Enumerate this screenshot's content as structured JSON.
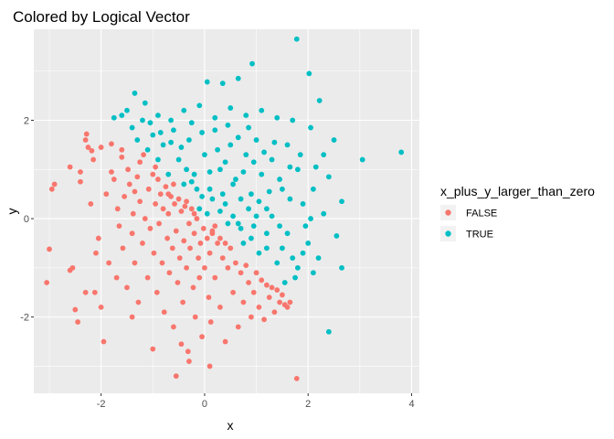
{
  "chart_data": {
    "type": "scatter",
    "title": "Colored by Logical Vector",
    "xlabel": "x",
    "ylabel": "y",
    "xlim": [
      -3.3,
      4.15
    ],
    "ylim": [
      -3.55,
      3.85
    ],
    "x_ticks": [
      -2,
      0,
      2,
      4
    ],
    "y_ticks": [
      -2,
      0,
      2
    ],
    "x_tick_labels": [
      "-2",
      "0",
      "2",
      "4"
    ],
    "y_tick_labels": [
      "-2",
      "0",
      "2"
    ],
    "grid": true,
    "legend_position": "right",
    "legend_title": "x_plus_y_larger_than_zero",
    "series": [
      {
        "name": "FALSE",
        "color": "#F8766D",
        "points": [
          [
            -3.0,
            -0.62
          ],
          [
            -3.05,
            -1.3
          ],
          [
            -2.95,
            0.6
          ],
          [
            -2.9,
            0.7
          ],
          [
            -2.6,
            1.05
          ],
          [
            -2.55,
            -1.0
          ],
          [
            -2.5,
            -1.85
          ],
          [
            -2.45,
            -2.1
          ],
          [
            -2.4,
            0.95
          ],
          [
            -2.4,
            0.75
          ],
          [
            -2.3,
            1.6
          ],
          [
            -2.28,
            1.72
          ],
          [
            -2.25,
            1.45
          ],
          [
            -2.2,
            0.3
          ],
          [
            -2.18,
            1.38
          ],
          [
            -2.15,
            1.2
          ],
          [
            -2.12,
            -1.5
          ],
          [
            -2.1,
            -0.7
          ],
          [
            -2.05,
            -0.4
          ],
          [
            -2.0,
            1.45
          ],
          [
            -2.0,
            -1.8
          ],
          [
            -1.95,
            -2.5
          ],
          [
            -1.9,
            0.5
          ],
          [
            -1.85,
            -0.9
          ],
          [
            -1.8,
            1.52
          ],
          [
            -1.75,
            0.8
          ],
          [
            -1.7,
            -1.2
          ],
          [
            -1.68,
            0.2
          ],
          [
            -1.65,
            -0.15
          ],
          [
            -1.6,
            1.4
          ],
          [
            -1.58,
            -0.6
          ],
          [
            -1.55,
            0.45
          ],
          [
            -1.5,
            -1.4
          ],
          [
            -1.48,
            1.0
          ],
          [
            -1.45,
            0.7
          ],
          [
            -1.4,
            -0.3
          ],
          [
            -1.38,
            0.1
          ],
          [
            -1.35,
            -0.9
          ],
          [
            -1.3,
            0.85
          ],
          [
            -1.28,
            -1.7
          ],
          [
            -1.25,
            0.35
          ],
          [
            -1.2,
            -0.5
          ],
          [
            -1.18,
            1.3
          ],
          [
            -1.15,
            0.0
          ],
          [
            -1.1,
            -1.2
          ],
          [
            -1.08,
            0.6
          ],
          [
            -1.05,
            -0.2
          ],
          [
            -1.0,
            -2.65
          ],
          [
            -1.0,
            0.9
          ],
          [
            -0.98,
            -0.7
          ],
          [
            -0.95,
            0.3
          ],
          [
            -0.92,
            -1.5
          ],
          [
            -0.9,
            0.8
          ],
          [
            -0.88,
            -0.1
          ],
          [
            -0.85,
            0.5
          ],
          [
            -0.82,
            -0.9
          ],
          [
            -0.8,
            0.2
          ],
          [
            -0.78,
            -1.9
          ],
          [
            -0.75,
            0.65
          ],
          [
            -0.72,
            -0.4
          ],
          [
            -0.7,
            0.1
          ],
          [
            -0.68,
            -1.1
          ],
          [
            -0.65,
            0.45
          ],
          [
            -0.62,
            -0.6
          ],
          [
            -0.6,
            -2.2
          ],
          [
            -0.58,
            0.3
          ],
          [
            -0.55,
            -0.25
          ],
          [
            -0.52,
            -1.3
          ],
          [
            -0.5,
            0.4
          ],
          [
            -0.48,
            -0.8
          ],
          [
            -0.45,
            0.15
          ],
          [
            -0.42,
            -1.7
          ],
          [
            -0.4,
            -0.45
          ],
          [
            -0.38,
            0.25
          ],
          [
            -0.35,
            -1.0
          ],
          [
            -0.32,
            -2.7
          ],
          [
            -0.3,
            -0.1
          ],
          [
            -0.28,
            -0.6
          ],
          [
            -0.25,
            0.2
          ],
          [
            -0.22,
            -1.4
          ],
          [
            -0.2,
            -0.3
          ],
          [
            -0.18,
            -2.0
          ],
          [
            -0.15,
            0.0
          ],
          [
            -0.12,
            -0.8
          ],
          [
            -0.1,
            -1.2
          ],
          [
            -0.08,
            -0.5
          ],
          [
            -0.05,
            -2.4
          ],
          [
            -0.02,
            -0.2
          ],
          [
            0.0,
            -1.0
          ],
          [
            0.05,
            -0.4
          ],
          [
            0.08,
            -1.6
          ],
          [
            0.1,
            -0.7
          ],
          [
            0.12,
            -2.1
          ],
          [
            0.15,
            -0.3
          ],
          [
            0.2,
            -1.2
          ],
          [
            0.25,
            -0.5
          ],
          [
            0.3,
            -1.8
          ],
          [
            0.35,
            -0.8
          ],
          [
            0.4,
            -2.5
          ],
          [
            0.45,
            -1.0
          ],
          [
            0.5,
            -0.6
          ],
          [
            0.55,
            -1.5
          ],
          [
            0.6,
            -0.9
          ],
          [
            0.65,
            -2.2
          ],
          [
            0.7,
            -1.1
          ],
          [
            0.75,
            -1.7
          ],
          [
            0.8,
            -0.95
          ],
          [
            0.85,
            -1.3
          ],
          [
            0.9,
            -2.0
          ],
          [
            0.95,
            -1.5
          ],
          [
            1.0,
            -1.1
          ],
          [
            1.05,
            -1.8
          ],
          [
            1.1,
            -1.25
          ],
          [
            1.15,
            -2.05
          ],
          [
            1.2,
            -1.35
          ],
          [
            1.25,
            -1.6
          ],
          [
            1.3,
            -1.4
          ],
          [
            1.35,
            -1.9
          ],
          [
            1.4,
            -1.45
          ],
          [
            1.45,
            -1.7
          ],
          [
            1.5,
            -1.55
          ],
          [
            1.55,
            -1.75
          ],
          [
            1.6,
            -1.8
          ],
          [
            1.65,
            -1.7
          ],
          [
            1.78,
            -3.25
          ],
          [
            -0.55,
            -3.2
          ],
          [
            0.1,
            -3.0
          ],
          [
            -0.3,
            -2.9
          ],
          [
            -0.45,
            -2.55
          ],
          [
            -1.4,
            -2.0
          ],
          [
            -2.3,
            -1.5
          ],
          [
            -2.6,
            -1.05
          ],
          [
            -1.8,
            0.95
          ],
          [
            -1.25,
            1.15
          ],
          [
            -0.95,
            1.05
          ],
          [
            -1.6,
            1.25
          ],
          [
            -1.35,
            0.55
          ],
          [
            -0.7,
            0.5
          ],
          [
            -0.6,
            0.7
          ],
          [
            -0.2,
            0.1
          ],
          [
            -0.35,
            0.35
          ],
          [
            0.15,
            -0.25
          ],
          [
            0.3,
            -0.4
          ],
          [
            0.4,
            -0.5
          ],
          [
            0.2,
            -0.15
          ]
        ]
      },
      {
        "name": "TRUE",
        "color": "#00BFC4",
        "points": [
          [
            1.78,
            3.65
          ],
          [
            0.92,
            3.15
          ],
          [
            2.02,
            2.95
          ],
          [
            0.35,
            2.75
          ],
          [
            0.05,
            2.78
          ],
          [
            0.65,
            2.85
          ],
          [
            2.22,
            2.4
          ],
          [
            -1.35,
            2.55
          ],
          [
            -1.5,
            2.2
          ],
          [
            -1.75,
            2.05
          ],
          [
            -1.15,
            2.35
          ],
          [
            -0.9,
            2.1
          ],
          [
            -0.65,
            2.0
          ],
          [
            -0.4,
            2.2
          ],
          [
            -0.1,
            2.3
          ],
          [
            0.2,
            2.05
          ],
          [
            0.5,
            2.25
          ],
          [
            0.8,
            2.1
          ],
          [
            1.1,
            2.2
          ],
          [
            1.4,
            2.05
          ],
          [
            1.7,
            2.0
          ],
          [
            2.05,
            1.85
          ],
          [
            3.05,
            1.2
          ],
          [
            3.8,
            1.35
          ],
          [
            2.5,
            1.6
          ],
          [
            2.3,
            1.3
          ],
          [
            2.65,
            0.35
          ],
          [
            2.4,
            0.85
          ],
          [
            2.1,
            0.6
          ],
          [
            1.9,
            0.3
          ],
          [
            1.8,
            1.0
          ],
          [
            1.6,
            1.5
          ],
          [
            1.5,
            0.6
          ],
          [
            1.3,
            1.2
          ],
          [
            1.2,
            0.2
          ],
          [
            1.1,
            0.9
          ],
          [
            1.0,
            1.6
          ],
          [
            0.9,
            0.5
          ],
          [
            0.8,
            1.3
          ],
          [
            0.7,
            -0.2
          ],
          [
            0.6,
            0.8
          ],
          [
            0.5,
            1.5
          ],
          [
            0.4,
            0.3
          ],
          [
            0.3,
            1.0
          ],
          [
            0.2,
            1.8
          ],
          [
            0.1,
            0.6
          ],
          [
            0.0,
            1.3
          ],
          [
            -0.1,
            0.2
          ],
          [
            -0.2,
            0.9
          ],
          [
            -0.3,
            1.6
          ],
          [
            -0.4,
            0.7
          ],
          [
            -0.5,
            1.2
          ],
          [
            -0.6,
            1.8
          ],
          [
            -0.7,
            0.9
          ],
          [
            -0.8,
            1.5
          ],
          [
            -0.9,
            1.2
          ],
          [
            -1.0,
            1.7
          ],
          [
            -1.1,
            1.4
          ],
          [
            -1.2,
            2.0
          ],
          [
            -1.3,
            1.6
          ],
          [
            -1.4,
            1.85
          ],
          [
            -1.6,
            2.1
          ],
          [
            1.2,
            -0.6
          ],
          [
            1.4,
            -0.9
          ],
          [
            1.6,
            -0.3
          ],
          [
            1.8,
            -1.0
          ],
          [
            2.0,
            -0.5
          ],
          [
            2.2,
            -0.8
          ],
          [
            1.55,
            -1.3
          ],
          [
            1.75,
            -1.2
          ],
          [
            2.1,
            -1.1
          ],
          [
            1.95,
            -0.15
          ],
          [
            2.3,
            0.1
          ],
          [
            2.55,
            -0.35
          ],
          [
            2.65,
            -1.0
          ],
          [
            2.4,
            -2.3
          ],
          [
            0.9,
            -0.4
          ],
          [
            0.75,
            -0.5
          ],
          [
            0.95,
            -0.15
          ],
          [
            1.05,
            -0.7
          ],
          [
            1.3,
            0.05
          ],
          [
            1.45,
            -0.15
          ],
          [
            1.65,
            0.4
          ],
          [
            0.55,
            0.05
          ],
          [
            0.45,
            -0.1
          ],
          [
            0.3,
            0.15
          ],
          [
            0.15,
            0.4
          ],
          [
            0.05,
            0.1
          ],
          [
            -0.05,
            0.45
          ],
          [
            -0.15,
            0.6
          ],
          [
            -0.25,
            0.75
          ],
          [
            -0.35,
            1.0
          ],
          [
            0.65,
            -0.1
          ],
          [
            0.85,
            0.2
          ],
          [
            1.05,
            0.35
          ],
          [
            1.25,
            0.55
          ],
          [
            1.45,
            0.8
          ],
          [
            1.65,
            1.05
          ],
          [
            1.85,
            1.3
          ],
          [
            2.15,
            1.05
          ],
          [
            0.35,
            0.5
          ],
          [
            0.55,
            0.7
          ],
          [
            0.75,
            0.95
          ],
          [
            0.95,
            1.15
          ],
          [
            1.15,
            1.35
          ],
          [
            1.35,
            1.55
          ],
          [
            0.25,
            1.4
          ],
          [
            0.45,
            1.9
          ],
          [
            0.65,
            1.65
          ],
          [
            0.85,
            1.85
          ],
          [
            -0.05,
            1.75
          ],
          [
            -0.25,
            1.95
          ],
          [
            -0.45,
            1.45
          ],
          [
            -0.65,
            1.55
          ],
          [
            -0.85,
            1.75
          ],
          [
            -1.05,
            1.95
          ],
          [
            0.1,
            0.95
          ],
          [
            0.4,
            1.15
          ],
          [
            0.7,
            0.4
          ],
          [
            1.0,
            0.05
          ],
          [
            1.2,
            -0.3
          ],
          [
            1.5,
            -0.6
          ],
          [
            1.7,
            -0.8
          ],
          [
            1.9,
            -0.7
          ],
          [
            2.05,
            0.0
          ]
        ]
      }
    ]
  }
}
